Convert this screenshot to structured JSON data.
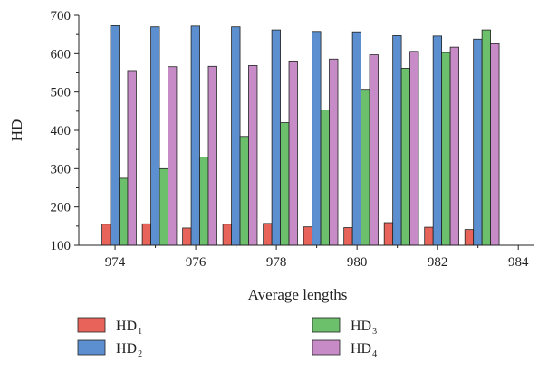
{
  "chart_data": {
    "type": "bar",
    "xlabel": "Average lengths",
    "ylabel": "HD",
    "ylim": [
      100,
      700
    ],
    "yticks": [
      100,
      200,
      300,
      400,
      500,
      600,
      700
    ],
    "xticks": [
      "974",
      "976",
      "978",
      "980",
      "982",
      "984"
    ],
    "xtick_values": [
      974,
      976,
      978,
      980,
      982,
      984
    ],
    "xlim": [
      973.1,
      984.4
    ],
    "group_centers": [
      974.1,
      975.1,
      976.1,
      977.1,
      978.1,
      979.1,
      980.1,
      981.1,
      982.1,
      983.1
    ],
    "group_width": 0.85,
    "grid": false,
    "legend_position": "bottom",
    "series": [
      {
        "name": "HD",
        "sub": "1",
        "color": "#e8645a",
        "values": [
          155,
          156,
          145,
          155,
          157,
          148,
          146,
          159,
          147,
          141
        ]
      },
      {
        "name": "HD",
        "sub": "2",
        "color": "#5b8fcf",
        "values": [
          673,
          670,
          672,
          670,
          662,
          658,
          657,
          647,
          646,
          638
        ]
      },
      {
        "name": "HD",
        "sub": "3",
        "color": "#6cc06c",
        "values": [
          275,
          300,
          330,
          384,
          420,
          453,
          507,
          562,
          603,
          662
        ]
      },
      {
        "name": "HD",
        "sub": "4",
        "color": "#c78cc8",
        "values": [
          556,
          566,
          567,
          569,
          581,
          586,
          597,
          606,
          617,
          626
        ]
      }
    ]
  }
}
